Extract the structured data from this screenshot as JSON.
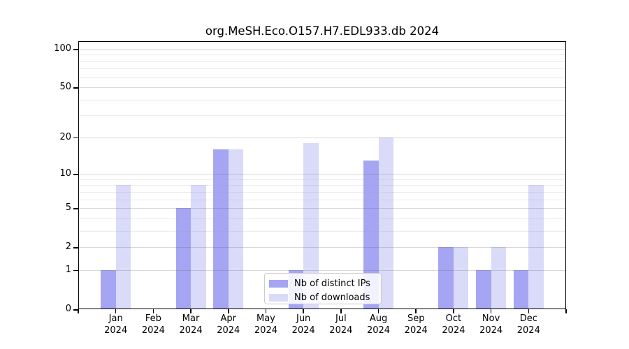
{
  "title": "org.MeSH.Eco.O157.H7.EDL933.db 2024",
  "chart_data": {
    "type": "bar",
    "months": [
      "Jan",
      "Feb",
      "Mar",
      "Apr",
      "May",
      "Jun",
      "Jul",
      "Aug",
      "Sep",
      "Oct",
      "Nov",
      "Dec"
    ],
    "year_label": "2024",
    "series": [
      {
        "name": "Nb of distinct IPs",
        "color": "#a5a5f3",
        "values": [
          1,
          0,
          5,
          16,
          0,
          1,
          0,
          13,
          0,
          2,
          1,
          1
        ]
      },
      {
        "name": "Nb of downloads",
        "color": "#dadaf9",
        "values": [
          8,
          0,
          8,
          16,
          0,
          18,
          0,
          20,
          0,
          2,
          2,
          8
        ]
      }
    ],
    "yscale": "log1p",
    "ylim": [
      0,
      115
    ],
    "yticks": [
      0,
      1,
      2,
      5,
      10,
      20,
      50,
      100
    ],
    "minor_yticks": [
      3,
      4,
      6,
      7,
      8,
      9,
      30,
      40,
      60,
      70,
      80,
      90
    ],
    "grid": true,
    "legend_position": "bottom-center",
    "background_color": "#ffffff",
    "axis_color": "#000000"
  }
}
